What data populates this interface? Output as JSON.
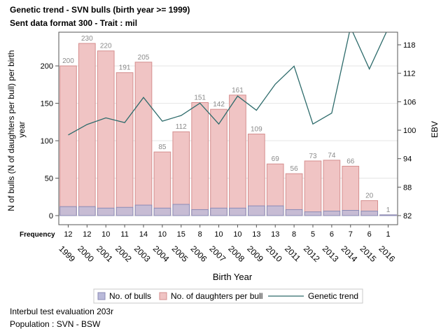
{
  "chart_data": {
    "type": "bar",
    "title": "Genetic trend - SVN bulls (birth year >= 1999)",
    "subtitle": "Sent data format 300 - Trait : mil",
    "xlabel": "Birth Year",
    "ylabel": "N of bulls (N of daughters per bull) per birth year",
    "y2label": "EBV",
    "ylim": [
      0,
      245
    ],
    "y2lim": [
      80.5,
      121
    ],
    "yticks": [
      0,
      50,
      100,
      150,
      200
    ],
    "y2ticks": [
      82,
      88,
      94,
      100,
      106,
      112,
      118
    ],
    "grid": true,
    "frequency_label": "Frequency",
    "categories": [
      "1999",
      "2000",
      "2001",
      "2002",
      "2003",
      "2004",
      "2005",
      "2006",
      "2007",
      "2008",
      "2009",
      "2010",
      "2011",
      "2012",
      "2013",
      "2014",
      "2015",
      "2016"
    ],
    "series": [
      {
        "name": "No. of bulls",
        "type": "bar",
        "color": "#b9b9d9",
        "values": [
          12,
          12,
          10,
          11,
          14,
          10,
          15,
          8,
          10,
          10,
          13,
          13,
          8,
          5,
          6,
          7,
          6,
          1
        ]
      },
      {
        "name": "No. of daughters per bull",
        "type": "bar",
        "color": "#f0c4c4",
        "values": [
          200,
          230,
          220,
          191,
          205,
          85,
          112,
          151,
          142,
          161,
          109,
          69,
          56,
          73,
          74,
          66,
          20,
          1
        ]
      },
      {
        "name": "Genetic trend",
        "type": "line",
        "axis": "y2",
        "color": "#2d6b6b",
        "values": [
          99.0,
          101.2,
          102.6,
          101.6,
          106.9,
          101.9,
          103.1,
          105.7,
          101.3,
          107.2,
          104.2,
          109.7,
          113.5,
          101.3,
          103.6,
          121.7,
          112.9,
          121.5
        ]
      }
    ],
    "frequency": [
      "12",
      "12",
      "10",
      "11",
      "14",
      "10",
      "15",
      "8",
      "10",
      "10",
      "13",
      "13",
      "8",
      "5",
      "6",
      "7",
      "6",
      "1"
    ]
  },
  "footer": {
    "line1": "Interbul test evaluation 203r",
    "line2": "Population : SVN - BSW"
  }
}
